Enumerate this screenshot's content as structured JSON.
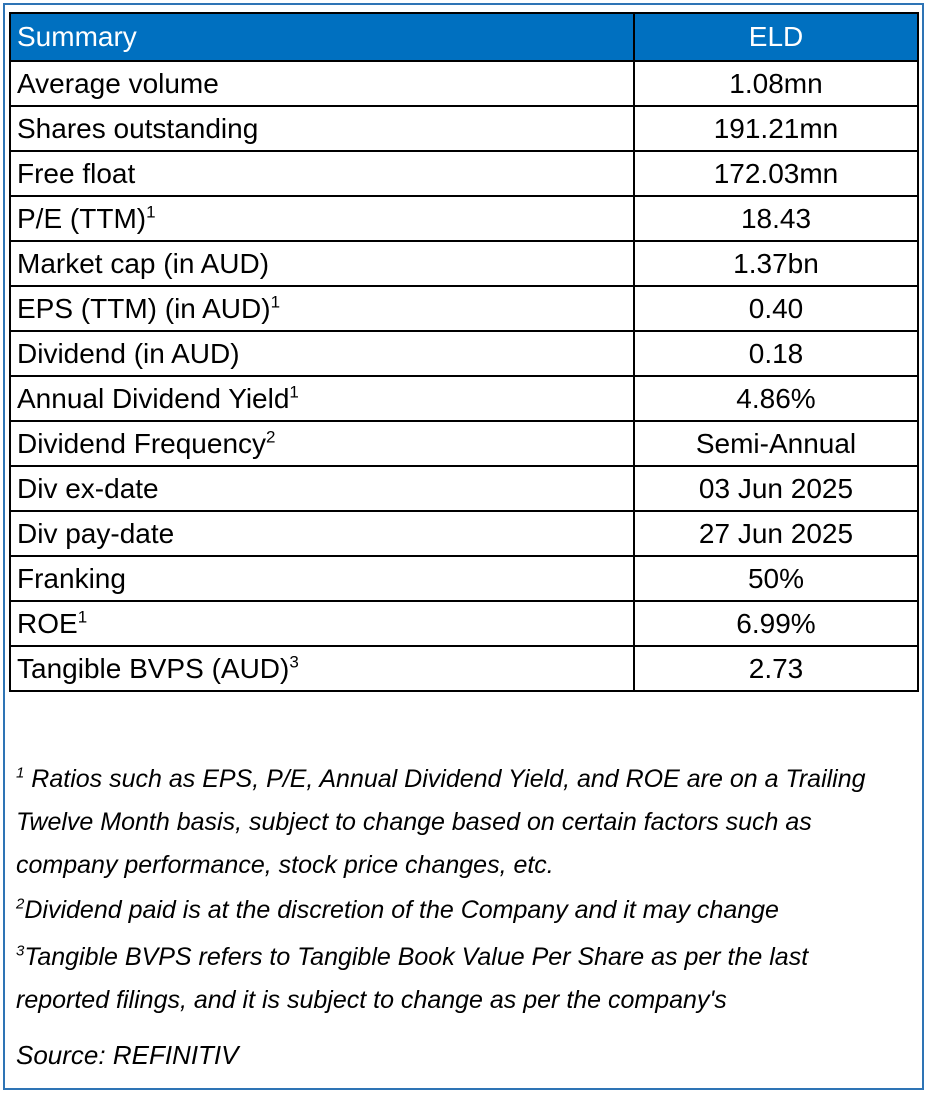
{
  "table": {
    "header": {
      "label": "Summary",
      "value": "ELD"
    },
    "rows": [
      {
        "label": "Average volume",
        "sup": "",
        "value": "1.08mn"
      },
      {
        "label": "Shares outstanding",
        "sup": "",
        "value": "191.21mn"
      },
      {
        "label": "Free float",
        "sup": "",
        "value": "172.03mn"
      },
      {
        "label": "P/E (TTM)",
        "sup": "1",
        "value": "18.43"
      },
      {
        "label": "Market cap (in AUD)",
        "sup": "",
        "value": "1.37bn"
      },
      {
        "label": "EPS (TTM) (in AUD)",
        "sup": "1",
        "value": "0.40"
      },
      {
        "label": "Dividend (in AUD)",
        "sup": "",
        "value": "0.18"
      },
      {
        "label": "Annual Dividend Yield",
        "sup": "1",
        "value": "4.86%"
      },
      {
        "label": "Dividend Frequency",
        "sup": "2",
        "value": "Semi-Annual"
      },
      {
        "label": "Div ex-date",
        "sup": "",
        "value": "03 Jun 2025"
      },
      {
        "label": "Div pay-date",
        "sup": "",
        "value": "27 Jun 2025"
      },
      {
        "label": "Franking",
        "sup": "",
        "value": "50%"
      },
      {
        "label": "ROE",
        "sup": "1",
        "value": "6.99%"
      },
      {
        "label": "Tangible BVPS (AUD)",
        "sup": "3",
        "value": "2.73"
      }
    ]
  },
  "notes": [
    {
      "marker": "1",
      "text": " Ratios such as EPS, P/E, Annual Dividend Yield, and ROE are on a Trailing Twelve Month basis, subject to change based on certain factors such as company performance, stock price changes, etc."
    },
    {
      "marker": "2",
      "text": "Dividend paid is at the discretion of the Company and it may change"
    },
    {
      "marker": "3",
      "text": "Tangible BVPS refers to Tangible Book Value Per Share as per the last reported filings, and it is subject to change as per the company's"
    }
  ],
  "source": "Source: REFINITIV",
  "colors": {
    "header_bg": "#0070c0",
    "header_text": "#ffffff",
    "frame_border": "#2e74b5"
  }
}
